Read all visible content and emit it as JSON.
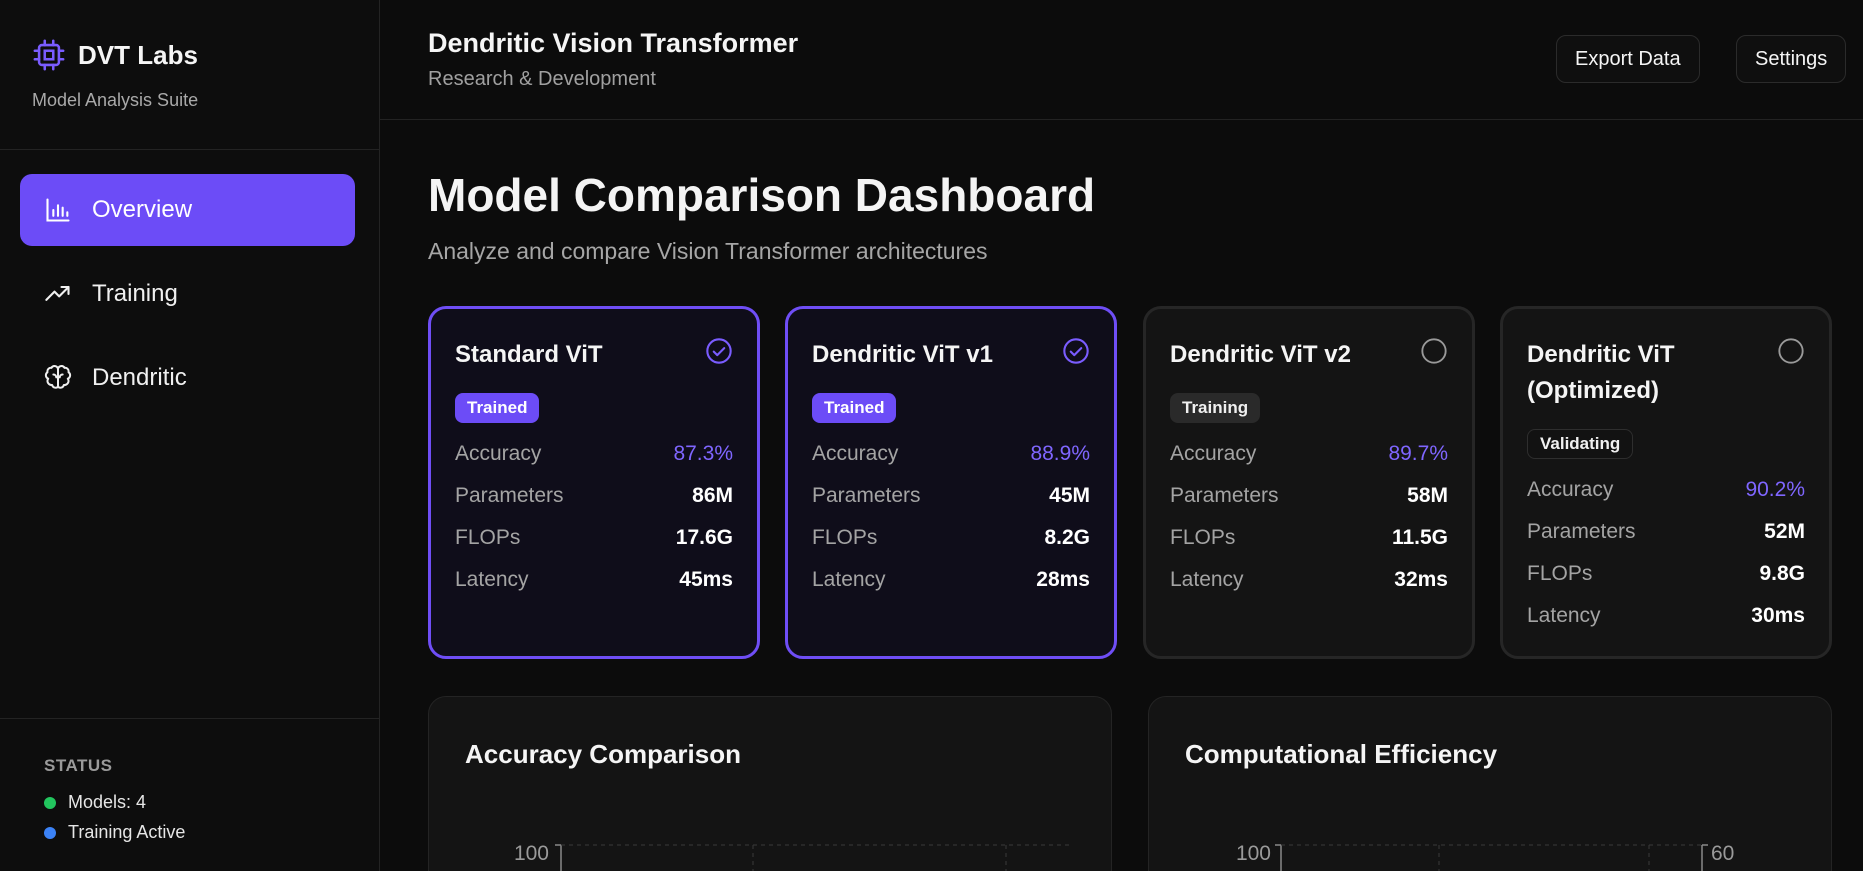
{
  "brand": {
    "title": "DVT Labs",
    "subtitle": "Model Analysis Suite"
  },
  "nav": {
    "items": [
      {
        "label": "Overview",
        "icon": "bar-chart-icon",
        "active": true
      },
      {
        "label": "Training",
        "icon": "trending-up-icon",
        "active": false
      },
      {
        "label": "Dendritic",
        "icon": "brain-icon",
        "active": false
      }
    ]
  },
  "status": {
    "label": "STATUS",
    "items": [
      {
        "text": "Models: 4",
        "color": "#22c55e"
      },
      {
        "text": "Training Active",
        "color": "#3b82f6"
      }
    ]
  },
  "header": {
    "title": "Dendritic Vision Transformer",
    "subtitle": "Research & Development",
    "export_label": "Export Data",
    "settings_label": "Settings"
  },
  "main": {
    "title": "Model Comparison Dashboard",
    "subtitle": "Analyze and compare Vision Transformer architectures"
  },
  "models": [
    {
      "name": "Standard ViT",
      "selected": true,
      "status": "Trained",
      "metrics": {
        "accuracy": "87.3%",
        "parameters": "86M",
        "flops": "17.6G",
        "latency": "45ms"
      }
    },
    {
      "name": "Dendritic ViT v1",
      "selected": true,
      "status": "Trained",
      "metrics": {
        "accuracy": "88.9%",
        "parameters": "45M",
        "flops": "8.2G",
        "latency": "28ms"
      }
    },
    {
      "name": "Dendritic ViT v2",
      "selected": false,
      "status": "Training",
      "metrics": {
        "accuracy": "89.7%",
        "parameters": "58M",
        "flops": "11.5G",
        "latency": "32ms"
      }
    },
    {
      "name": "Dendritic ViT (Optimized)",
      "selected": false,
      "status": "Validating",
      "metrics": {
        "accuracy": "90.2%",
        "parameters": "52M",
        "flops": "9.8G",
        "latency": "30ms"
      }
    }
  ],
  "metric_labels": {
    "accuracy": "Accuracy",
    "parameters": "Parameters",
    "flops": "FLOPs",
    "latency": "Latency"
  },
  "panels": {
    "accuracy": {
      "title": "Accuracy Comparison",
      "y_top_tick": "100"
    },
    "efficiency": {
      "title": "Computational Efficiency",
      "y_top_tick": "100",
      "y2_top_tick": "60"
    }
  },
  "colors": {
    "accent": "#6c4cf7",
    "accent_text": "#7f66ff",
    "background": "#0c0c0c"
  }
}
